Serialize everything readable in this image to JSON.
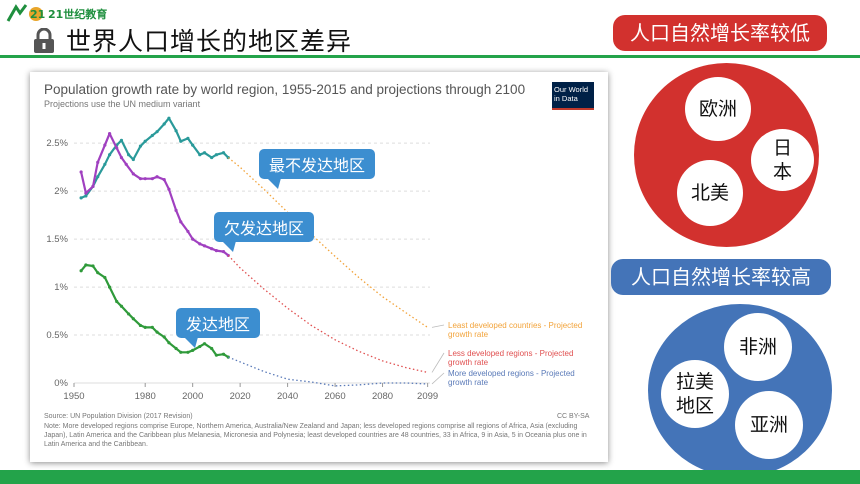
{
  "header": {
    "logo_text": "21世纪教育",
    "slide_title": "世界人口增长的地区差异"
  },
  "chart": {
    "title": "Population growth rate by world region, 1955-2015 and projections through 2100",
    "subtitle": "Projections use the UN medium variant",
    "owid_line1": "Our World",
    "owid_line2": "in Data",
    "source": "Source: UN Population Division (2017 Revision)",
    "license": "CC BY-SA",
    "note": "Note: More developed regions comprise Europe, Northern America, Australia/New Zealand and Japan; less developed regions comprise all regions of Africa, Asia (excluding Japan), Latin America and the Caribbean plus Melanesia, Micronesia and Polynesia; least developed countries are 48 countries, 33 in Africa, 9 in Asia, 5 in Oceania plus one in Latin America and the Caribbean.",
    "legend": {
      "least_1": "Least developed countries - Projected",
      "least_2": "growth rate",
      "less_1": "Less developed regions - Projected",
      "less_2": "growth rate",
      "more_1": "More developed regions - Projected",
      "more_2": "growth rate"
    }
  },
  "chart_data": {
    "type": "line",
    "title": "Population growth rate by world region, 1955-2015 and projections through 2100",
    "subtitle": "Projections use the UN medium variant",
    "x_ticks": [
      "1950",
      "1980",
      "2000",
      "2020",
      "2040",
      "2060",
      "2080",
      "2099"
    ],
    "y_ticks": [
      "0%",
      "0.5%",
      "1%",
      "1.5%",
      "2%",
      "2.5%"
    ],
    "xlim": [
      1950,
      2100
    ],
    "ylim": [
      0,
      2.7
    ],
    "series": [
      {
        "name": "Least developed countries",
        "color": "#2a9a9a",
        "projected_color": "#f2a33a",
        "x": [
          1953,
          1955,
          1958,
          1960,
          1963,
          1965,
          1968,
          1970,
          1973,
          1975,
          1978,
          1980,
          1983,
          1985,
          1988,
          1990,
          1993,
          1995,
          1998,
          2000,
          2003,
          2005,
          2008,
          2010,
          2013,
          2015
        ],
        "y": [
          1.93,
          1.95,
          2.05,
          2.15,
          2.28,
          2.38,
          2.48,
          2.53,
          2.38,
          2.33,
          2.47,
          2.52,
          2.58,
          2.62,
          2.7,
          2.76,
          2.63,
          2.52,
          2.55,
          2.48,
          2.38,
          2.4,
          2.35,
          2.38,
          2.4,
          2.35
        ],
        "projected_x": [
          2015,
          2020,
          2030,
          2040,
          2050,
          2060,
          2070,
          2080,
          2090,
          2099
        ],
        "projected_y": [
          2.35,
          2.25,
          2.02,
          1.78,
          1.55,
          1.32,
          1.1,
          0.9,
          0.73,
          0.58
        ]
      },
      {
        "name": "Less developed regions",
        "color": "#a040c0",
        "projected_color": "#e05050",
        "x": [
          1953,
          1955,
          1958,
          1960,
          1963,
          1965,
          1968,
          1970,
          1972,
          1975,
          1978,
          1980,
          1983,
          1985,
          1988,
          1990,
          1993,
          1995,
          1998,
          2000,
          2003,
          2005,
          2008,
          2010,
          2013,
          2015
        ],
        "y": [
          2.2,
          1.98,
          2.05,
          2.3,
          2.48,
          2.6,
          2.45,
          2.35,
          2.28,
          2.18,
          2.13,
          2.13,
          2.13,
          2.15,
          2.12,
          2.02,
          1.8,
          1.68,
          1.58,
          1.5,
          1.45,
          1.43,
          1.4,
          1.38,
          1.37,
          1.33
        ],
        "projected_x": [
          2015,
          2020,
          2030,
          2040,
          2050,
          2060,
          2070,
          2080,
          2090,
          2099
        ],
        "projected_y": [
          1.33,
          1.2,
          0.98,
          0.78,
          0.6,
          0.45,
          0.33,
          0.23,
          0.16,
          0.11
        ]
      },
      {
        "name": "More developed regions",
        "color": "#2f9a3a",
        "projected_color": "#5a7ab8",
        "x": [
          1953,
          1955,
          1958,
          1960,
          1963,
          1965,
          1968,
          1970,
          1973,
          1975,
          1978,
          1980,
          1983,
          1985,
          1988,
          1990,
          1993,
          1995,
          1998,
          2000,
          2003,
          2005,
          2008,
          2010,
          2013,
          2015
        ],
        "y": [
          1.17,
          1.23,
          1.22,
          1.15,
          1.1,
          1.0,
          0.85,
          0.8,
          0.72,
          0.67,
          0.6,
          0.58,
          0.58,
          0.53,
          0.48,
          0.42,
          0.36,
          0.32,
          0.32,
          0.34,
          0.38,
          0.41,
          0.36,
          0.29,
          0.3,
          0.27
        ],
        "projected_x": [
          2015,
          2020,
          2030,
          2040,
          2050,
          2060,
          2070,
          2080,
          2090,
          2099
        ],
        "projected_y": [
          0.27,
          0.22,
          0.12,
          0.04,
          0.01,
          -0.03,
          -0.02,
          0.0,
          0.0,
          -0.01
        ]
      }
    ]
  },
  "callouts": {
    "least": "最不发达地区",
    "less": "欠发达地区",
    "more": "发达地区"
  },
  "panel": {
    "low_label": "人口自然增长率较低",
    "low_items": [
      "欧洲",
      "日本",
      "北美"
    ],
    "high_label": "人口自然增长率较高",
    "high_items": [
      "非洲",
      "拉美地区",
      "亚洲"
    ]
  }
}
